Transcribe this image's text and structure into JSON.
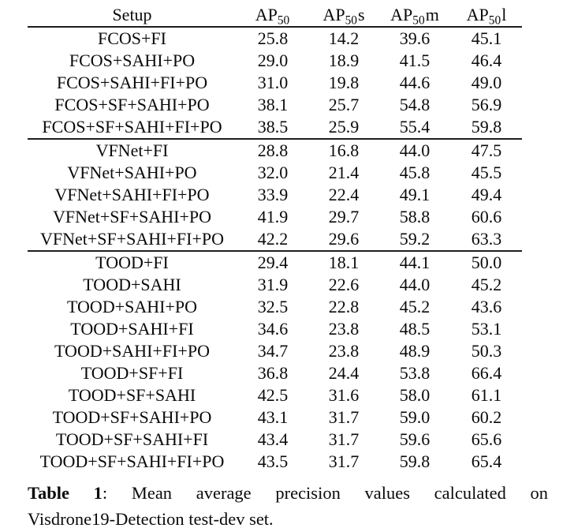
{
  "page": {
    "background": "#ffffff",
    "text_color": "#0a0a0a",
    "rule_color": "#1e1e1e"
  },
  "table": {
    "columns": [
      {
        "label": "Setup",
        "base": "",
        "sub": "",
        "suffix": ""
      },
      {
        "label": "",
        "base": "AP",
        "sub": "50",
        "suffix": ""
      },
      {
        "label": "",
        "base": "AP",
        "sub": "50",
        "suffix": "s"
      },
      {
        "label": "",
        "base": "AP",
        "sub": "50",
        "suffix": "m"
      },
      {
        "label": "",
        "base": "AP",
        "sub": "50",
        "suffix": "l"
      }
    ],
    "sections": [
      {
        "name": "FCOS",
        "rows": [
          {
            "setup": "FCOS+FI",
            "values": [
              {
                "text": "25.8",
                "bold": false
              },
              {
                "text": "14.2",
                "bold": false
              },
              {
                "text": "39.6",
                "bold": false
              },
              {
                "text": "45.1",
                "bold": false
              }
            ]
          },
          {
            "setup": "FCOS+SAHI+PO",
            "values": [
              {
                "text": "29.0",
                "bold": false
              },
              {
                "text": "18.9",
                "bold": false
              },
              {
                "text": "41.5",
                "bold": false
              },
              {
                "text": "46.4",
                "bold": false
              }
            ]
          },
          {
            "setup": "FCOS+SAHI+FI+PO",
            "values": [
              {
                "text": "31.0",
                "bold": false
              },
              {
                "text": "19.8",
                "bold": false
              },
              {
                "text": "44.6",
                "bold": false
              },
              {
                "text": "49.0",
                "bold": false
              }
            ]
          },
          {
            "setup": "FCOS+SF+SAHI+PO",
            "values": [
              {
                "text": "38.1",
                "bold": false
              },
              {
                "text": "25.7",
                "bold": false
              },
              {
                "text": "54.8",
                "bold": false
              },
              {
                "text": "56.9",
                "bold": false
              }
            ]
          },
          {
            "setup": "FCOS+SF+SAHI+FI+PO",
            "values": [
              {
                "text": "38.5",
                "bold": true
              },
              {
                "text": "25.9",
                "bold": true
              },
              {
                "text": "55.4",
                "bold": true
              },
              {
                "text": "59.8",
                "bold": true
              }
            ]
          }
        ]
      },
      {
        "name": "VFNet",
        "rows": [
          {
            "setup": "VFNet+FI",
            "values": [
              {
                "text": "28.8",
                "bold": false
              },
              {
                "text": "16.8",
                "bold": false
              },
              {
                "text": "44.0",
                "bold": false
              },
              {
                "text": "47.5",
                "bold": false
              }
            ]
          },
          {
            "setup": "VFNet+SAHI+PO",
            "values": [
              {
                "text": "32.0",
                "bold": false
              },
              {
                "text": "21.4",
                "bold": false
              },
              {
                "text": "45.8",
                "bold": false
              },
              {
                "text": "45.5",
                "bold": false
              }
            ]
          },
          {
            "setup": "VFNet+SAHI+FI+PO",
            "values": [
              {
                "text": "33.9",
                "bold": false
              },
              {
                "text": "22.4",
                "bold": false
              },
              {
                "text": "49.1",
                "bold": false
              },
              {
                "text": "49.4",
                "bold": false
              }
            ]
          },
          {
            "setup": "VFNet+SF+SAHI+PO",
            "values": [
              {
                "text": "41.9",
                "bold": false
              },
              {
                "text": "29.7",
                "bold": true
              },
              {
                "text": "58.8",
                "bold": false
              },
              {
                "text": "60.6",
                "bold": false
              }
            ]
          },
          {
            "setup": "VFNet+SF+SAHI+FI+PO",
            "values": [
              {
                "text": "42.2",
                "bold": true
              },
              {
                "text": "29.6",
                "bold": true
              },
              {
                "text": "59.2",
                "bold": true
              },
              {
                "text": "63.3",
                "bold": true
              }
            ]
          }
        ]
      },
      {
        "name": "TOOD",
        "rows": [
          {
            "setup": "TOOD+FI",
            "values": [
              {
                "text": "29.4",
                "bold": false
              },
              {
                "text": "18.1",
                "bold": false
              },
              {
                "text": "44.1",
                "bold": false
              },
              {
                "text": "50.0",
                "bold": false
              }
            ]
          },
          {
            "setup": "TOOD+SAHI",
            "values": [
              {
                "text": "31.9",
                "bold": false
              },
              {
                "text": "22.6",
                "bold": false
              },
              {
                "text": "44.0",
                "bold": false
              },
              {
                "text": "45.2",
                "bold": false
              }
            ]
          },
          {
            "setup": "TOOD+SAHI+PO",
            "values": [
              {
                "text": "32.5",
                "bold": false
              },
              {
                "text": "22.8",
                "bold": false
              },
              {
                "text": "45.2",
                "bold": false
              },
              {
                "text": "43.6",
                "bold": false
              }
            ]
          },
          {
            "setup": "TOOD+SAHI+FI",
            "values": [
              {
                "text": "34.6",
                "bold": false
              },
              {
                "text": "23.8",
                "bold": false
              },
              {
                "text": "48.5",
                "bold": false
              },
              {
                "text": "53.1",
                "bold": false
              }
            ]
          },
          {
            "setup": "TOOD+SAHI+FI+PO",
            "values": [
              {
                "text": "34.7",
                "bold": false
              },
              {
                "text": "23.8",
                "bold": false
              },
              {
                "text": "48.9",
                "bold": false
              },
              {
                "text": "50.3",
                "bold": false
              }
            ]
          },
          {
            "setup": "TOOD+SF+FI",
            "values": [
              {
                "text": "36.8",
                "bold": false
              },
              {
                "text": "24.4",
                "bold": false
              },
              {
                "text": "53.8",
                "bold": false
              },
              {
                "text": "66.4",
                "bold": true
              }
            ]
          },
          {
            "setup": "TOOD+SF+SAHI",
            "values": [
              {
                "text": "42.5",
                "bold": false
              },
              {
                "text": "31.6",
                "bold": false
              },
              {
                "text": "58.0",
                "bold": false
              },
              {
                "text": "61.1",
                "bold": false
              }
            ]
          },
          {
            "setup": "TOOD+SF+SAHI+PO",
            "values": [
              {
                "text": "43.1",
                "bold": false
              },
              {
                "text": "31.7",
                "bold": true
              },
              {
                "text": "59.0",
                "bold": false
              },
              {
                "text": "60.2",
                "bold": false
              }
            ]
          },
          {
            "setup": "TOOD+SF+SAHI+FI",
            "values": [
              {
                "text": "43.4",
                "bold": false
              },
              {
                "text": "31.7",
                "bold": true
              },
              {
                "text": "59.6",
                "bold": false
              },
              {
                "text": "65.6",
                "bold": false
              }
            ]
          },
          {
            "setup": "TOOD+SF+SAHI+FI+PO",
            "values": [
              {
                "text": "43.5",
                "bold": true
              },
              {
                "text": "31.7",
                "bold": true
              },
              {
                "text": "59.8",
                "bold": true
              },
              {
                "text": "65.4",
                "bold": false
              }
            ]
          }
        ]
      }
    ]
  },
  "caption": {
    "label": "Table 1",
    "colon": ":",
    "line1_rest": "Mean average precision values calculated on",
    "line2": "Visdrone19-Detection test-dev set."
  }
}
